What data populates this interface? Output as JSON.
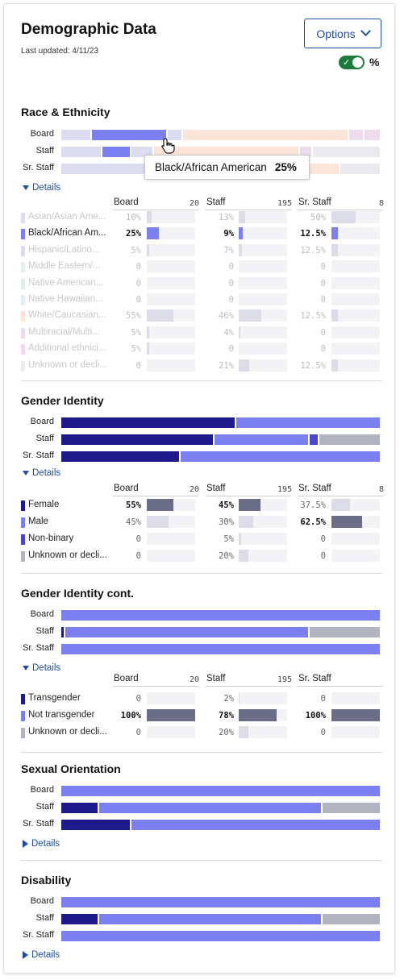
{
  "header": {
    "title": "Demographic Data",
    "updated": "Last updated: 4/11/23",
    "options_label": "Options",
    "percent_toggle_label": "%",
    "percent_toggle_on": true
  },
  "colors": {
    "accent": "#1f4fa3",
    "dark_series": "#1f1a8c",
    "light_series": "#7b7ff0",
    "gray_series": "#b2b5bf",
    "toggle_on": "#1d7a3a"
  },
  "row_labels": {
    "board": "Board",
    "staff": "Staff",
    "sr_staff": "Sr. Staff"
  },
  "details_label": "Details",
  "sections": [
    {
      "id": "race",
      "title": "Race & Ethnicity",
      "expanded": true,
      "tooltip": {
        "label": "Black/African American",
        "value": "25%"
      },
      "columns": [
        {
          "name": "Board",
          "count": "20"
        },
        {
          "name": "Staff",
          "count": "195"
        },
        {
          "name": "Sr. Staff",
          "count": "8"
        }
      ],
      "categories": [
        {
          "label": "Asian/Asian Ame...",
          "color": "#dcdcf0",
          "values": [
            "10%",
            "13%",
            "50%"
          ],
          "fractions": [
            0.1,
            0.13,
            0.5
          ],
          "faded": true
        },
        {
          "label": "Black/African Am...",
          "color": "#7b7ff0",
          "values": [
            "25%",
            "9%",
            "12.5%"
          ],
          "fractions": [
            0.25,
            0.09,
            0.125
          ],
          "faded": false
        },
        {
          "label": "Hispanic/Latino...",
          "color": "#dcdcf0",
          "values": [
            "5%",
            "7%",
            "12.5%"
          ],
          "fractions": [
            0.05,
            0.07,
            0.125
          ],
          "faded": true
        },
        {
          "label": "Middle Eastern/...",
          "color": "#e6f1ef",
          "values": [
            "0",
            "0",
            "0"
          ],
          "fractions": [
            0,
            0,
            0
          ],
          "faded": true
        },
        {
          "label": "Native American...",
          "color": "#dcefec",
          "values": [
            "0",
            "0",
            "0"
          ],
          "fractions": [
            0,
            0,
            0
          ],
          "faded": true
        },
        {
          "label": "Native Hawaiian...",
          "color": "#e6ecf5",
          "values": [
            "0",
            "0",
            "0"
          ],
          "fractions": [
            0,
            0,
            0
          ],
          "faded": true
        },
        {
          "label": "White/Caucasian...",
          "color": "#fbe4d8",
          "values": [
            "55%",
            "46%",
            "12.5%"
          ],
          "fractions": [
            0.55,
            0.46,
            0.125
          ],
          "faded": true
        },
        {
          "label": "Multiracial/Multi...",
          "color": "#ecdcec",
          "values": [
            "5%",
            "4%",
            "0"
          ],
          "fractions": [
            0.05,
            0.04,
            0
          ],
          "faded": true
        },
        {
          "label": "Additional ethnici...",
          "color": "#eedcee",
          "values": [
            "5%",
            "0",
            "0"
          ],
          "fractions": [
            0.05,
            0,
            0
          ],
          "faded": true
        },
        {
          "label": "Unknown or decli...",
          "color": "#ebebef",
          "values": [
            "0",
            "21%",
            "12.5%"
          ],
          "fractions": [
            0,
            0.21,
            0.125
          ],
          "faded": true
        }
      ]
    },
    {
      "id": "gender",
      "title": "Gender Identity",
      "expanded": true,
      "columns": [
        {
          "name": "Board",
          "count": "20"
        },
        {
          "name": "Staff",
          "count": "195"
        },
        {
          "name": "Sr. Staff",
          "count": "8"
        }
      ],
      "categories": [
        {
          "label": "Female",
          "color": "#1f1a8c",
          "values": [
            "55%",
            "45%",
            "37.5%"
          ],
          "fractions": [
            0.55,
            0.45,
            0.375
          ],
          "hl": [
            true,
            true,
            false
          ]
        },
        {
          "label": "Male",
          "color": "#7b7ff0",
          "values": [
            "45%",
            "30%",
            "62.5%"
          ],
          "fractions": [
            0.45,
            0.3,
            0.625
          ],
          "hl": [
            false,
            false,
            true
          ]
        },
        {
          "label": "Non-binary",
          "color": "#4b46c8",
          "values": [
            "0",
            "5%",
            "0"
          ],
          "fractions": [
            0,
            0.05,
            0
          ],
          "hl": [
            false,
            false,
            false
          ]
        },
        {
          "label": "Unknown or decli...",
          "color": "#b2b5bf",
          "values": [
            "0",
            "20%",
            "0"
          ],
          "fractions": [
            0,
            0.2,
            0
          ],
          "hl": [
            false,
            false,
            false
          ]
        }
      ]
    },
    {
      "id": "gender_cont",
      "title": "Gender Identity cont.",
      "expanded": true,
      "columns": [
        {
          "name": "Board",
          "count": "20"
        },
        {
          "name": "Staff",
          "count": "195"
        },
        {
          "name": "Sr. Staff",
          "count": ""
        }
      ],
      "categories": [
        {
          "label": "Transgender",
          "color": "#1f1a8c",
          "values": [
            "0",
            "2%",
            "0"
          ],
          "fractions": [
            0,
            0.02,
            0
          ],
          "hl": [
            false,
            false,
            false
          ]
        },
        {
          "label": "Not transgender",
          "color": "#7b7ff0",
          "values": [
            "100%",
            "78%",
            "100%"
          ],
          "fractions": [
            1.0,
            0.78,
            1.0
          ],
          "hl": [
            true,
            true,
            true
          ]
        },
        {
          "label": "Unknown or decli...",
          "color": "#b2b5bf",
          "values": [
            "0",
            "20%",
            "0"
          ],
          "fractions": [
            0,
            0.2,
            0
          ],
          "hl": [
            false,
            false,
            false
          ]
        }
      ]
    },
    {
      "id": "sexual",
      "title": "Sexual Orientation",
      "expanded": false
    },
    {
      "id": "disability",
      "title": "Disability",
      "expanded": false
    }
  ]
}
